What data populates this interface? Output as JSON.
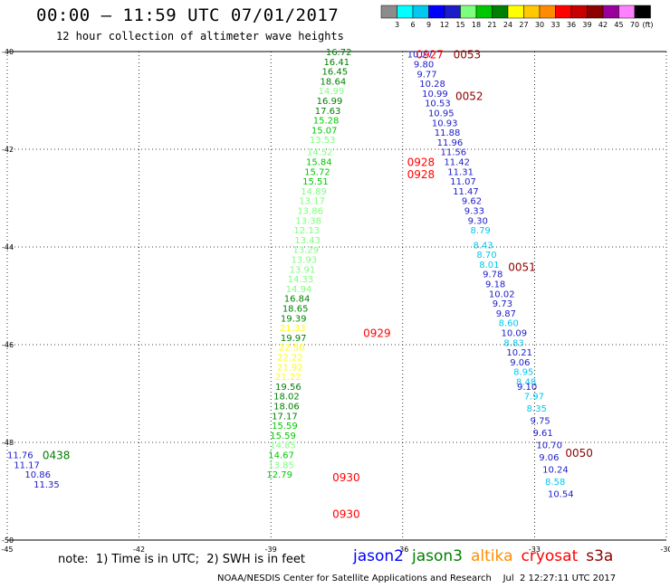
{
  "title": "00:00 – 11:59 UTC 07/01/2017",
  "subtitle": "12 hour collection of altimeter wave heights",
  "legend": {
    "unit": "(ft)",
    "labels": [
      "3",
      "6",
      "9",
      "12",
      "15",
      "18",
      "21",
      "24",
      "27",
      "30",
      "33",
      "36",
      "39",
      "42",
      "45",
      "70"
    ],
    "colors": [
      "#8c8c8c",
      "#00ffff",
      "#00c8f0",
      "#0000ff",
      "#1c1cc8",
      "#7dff7d",
      "#00c800",
      "#008000",
      "#ffff00",
      "#ffc800",
      "#ff8c00",
      "#ff0000",
      "#c80000",
      "#8c0000",
      "#9c009c",
      "#ff80ff",
      "#000000"
    ]
  },
  "chart_data": {
    "type": "map-annotations",
    "axes": {
      "lon_ticks": [
        "-45",
        "-42",
        "-39",
        "-36",
        "-33",
        "-30"
      ],
      "lat_ticks": [
        "-40",
        "-42",
        "-44",
        "-46",
        "-48",
        "-50"
      ],
      "lon_range": [
        -45,
        -30
      ],
      "lat_range": [
        -50,
        -40
      ]
    },
    "grid": "dotted",
    "tracks": [
      {
        "satellite": "jason3",
        "pass_labels": [
          {
            "text": "0927",
            "color": "#ff0000",
            "lat": -40.05,
            "lon": -35.7
          },
          {
            "text": "0928",
            "color": "#ff0000",
            "lat": -42.25,
            "lon": -35.9
          },
          {
            "text": "0928",
            "color": "#ff0000",
            "lat": -42.5,
            "lon": -35.9
          },
          {
            "text": "0929",
            "color": "#ff0000",
            "lat": -45.75,
            "lon": -36.9
          },
          {
            "text": "0930",
            "color": "#ff0000",
            "lat": -48.7,
            "lon": -37.6
          },
          {
            "text": "0930",
            "color": "#ff0000",
            "lat": -49.45,
            "lon": -37.6
          }
        ],
        "points": [
          {
            "v": "16.72",
            "lat": -40.0,
            "lon": -37.75,
            "color": "#008000"
          },
          {
            "v": "16.41",
            "lat": -40.2,
            "lon": -37.8,
            "color": "#008000"
          },
          {
            "v": "16.45",
            "lat": -40.4,
            "lon": -37.84,
            "color": "#008000"
          },
          {
            "v": "18.64",
            "lat": -40.6,
            "lon": -37.88,
            "color": "#008000"
          },
          {
            "v": "14.99",
            "lat": -40.8,
            "lon": -37.92,
            "color": "#7dff7d"
          },
          {
            "v": "16.99",
            "lat": -41.0,
            "lon": -37.96,
            "color": "#008000"
          },
          {
            "v": "17.63",
            "lat": -41.2,
            "lon": -38.0,
            "color": "#008000"
          },
          {
            "v": "15.28",
            "lat": -41.4,
            "lon": -38.04,
            "color": "#00c800"
          },
          {
            "v": "15.07",
            "lat": -41.6,
            "lon": -38.08,
            "color": "#00c800"
          },
          {
            "v": "13.53",
            "lat": -41.8,
            "lon": -38.12,
            "color": "#7dff7d"
          },
          {
            "v": "14.52",
            "lat": -42.05,
            "lon": -38.18,
            "color": "#7dff7d"
          },
          {
            "v": "15.84",
            "lat": -42.25,
            "lon": -38.2,
            "color": "#00c800"
          },
          {
            "v": "15.72",
            "lat": -42.45,
            "lon": -38.24,
            "color": "#00c800"
          },
          {
            "v": "15.51",
            "lat": -42.65,
            "lon": -38.28,
            "color": "#00c800"
          },
          {
            "v": "14.89",
            "lat": -42.85,
            "lon": -38.32,
            "color": "#7dff7d"
          },
          {
            "v": "13.17",
            "lat": -43.05,
            "lon": -38.36,
            "color": "#7dff7d"
          },
          {
            "v": "13.86",
            "lat": -43.25,
            "lon": -38.4,
            "color": "#7dff7d"
          },
          {
            "v": "13.38",
            "lat": -43.45,
            "lon": -38.44,
            "color": "#7dff7d"
          },
          {
            "v": "12.13",
            "lat": -43.65,
            "lon": -38.48,
            "color": "#7dff7d"
          },
          {
            "v": "13.43",
            "lat": -43.85,
            "lon": -38.46,
            "color": "#7dff7d"
          },
          {
            "v": "13.29",
            "lat": -44.05,
            "lon": -38.5,
            "color": "#7dff7d"
          },
          {
            "v": "13.93",
            "lat": -44.25,
            "lon": -38.54,
            "color": "#7dff7d"
          },
          {
            "v": "13.91",
            "lat": -44.45,
            "lon": -38.58,
            "color": "#7dff7d"
          },
          {
            "v": "14.33",
            "lat": -44.65,
            "lon": -38.62,
            "color": "#7dff7d"
          },
          {
            "v": "14.94",
            "lat": -44.85,
            "lon": -38.66,
            "color": "#7dff7d"
          },
          {
            "v": "16.84",
            "lat": -45.05,
            "lon": -38.7,
            "color": "#008000"
          },
          {
            "v": "18.65",
            "lat": -45.25,
            "lon": -38.74,
            "color": "#008000"
          },
          {
            "v": "19.39",
            "lat": -45.45,
            "lon": -38.78,
            "color": "#008000"
          },
          {
            "v": "21.33",
            "lat": -45.65,
            "lon": -38.8,
            "color": "#ffff00"
          },
          {
            "v": "19.97",
            "lat": -45.85,
            "lon": -38.78,
            "color": "#008000"
          },
          {
            "v": "22.50",
            "lat": -46.05,
            "lon": -38.82,
            "color": "#ffff00"
          },
          {
            "v": "22.22",
            "lat": -46.25,
            "lon": -38.86,
            "color": "#ffff00"
          },
          {
            "v": "21.92",
            "lat": -46.45,
            "lon": -38.86,
            "color": "#ffff00"
          },
          {
            "v": "21.22",
            "lat": -46.65,
            "lon": -38.9,
            "color": "#ffff00"
          },
          {
            "v": "19.56",
            "lat": -46.85,
            "lon": -38.9,
            "color": "#008000"
          },
          {
            "v": "18.02",
            "lat": -47.05,
            "lon": -38.94,
            "color": "#008000"
          },
          {
            "v": "18.06",
            "lat": -47.25,
            "lon": -38.94,
            "color": "#008000"
          },
          {
            "v": "17.17",
            "lat": -47.45,
            "lon": -38.98,
            "color": "#008000"
          },
          {
            "v": "15.59",
            "lat": -47.65,
            "lon": -38.98,
            "color": "#00c800"
          },
          {
            "v": "15.59",
            "lat": -47.85,
            "lon": -39.02,
            "color": "#00c800"
          },
          {
            "v": "14.85",
            "lat": -48.05,
            "lon": -39.02,
            "color": "#7dff7d"
          },
          {
            "v": "14.67",
            "lat": -48.25,
            "lon": -39.06,
            "color": "#00c800"
          },
          {
            "v": "13.85",
            "lat": -48.45,
            "lon": -39.06,
            "color": "#7dff7d"
          },
          {
            "v": "12.79",
            "lat": -48.65,
            "lon": -39.1,
            "color": "#00c800"
          }
        ]
      },
      {
        "satellite": "jason3-left",
        "pass_labels": [
          {
            "text": "0438",
            "color": "#008000",
            "lat": -48.25,
            "lon": -44.2
          }
        ],
        "points": [
          {
            "v": "11.76",
            "lat": -48.25,
            "lon": -45.0,
            "color": "#1c1cc8"
          },
          {
            "v": "11.17",
            "lat": -48.45,
            "lon": -44.85,
            "color": "#1c1cc8"
          },
          {
            "v": "10.86",
            "lat": -48.65,
            "lon": -44.6,
            "color": "#1c1cc8"
          },
          {
            "v": "11.35",
            "lat": -48.85,
            "lon": -44.4,
            "color": "#1c1cc8"
          }
        ]
      },
      {
        "satellite": "s3a",
        "pass_labels": [
          {
            "text": "0053",
            "color": "#8c0000",
            "lat": -40.05,
            "lon": -34.85
          },
          {
            "text": "0052",
            "color": "#8c0000",
            "lat": -40.9,
            "lon": -34.8
          },
          {
            "text": "0051",
            "color": "#8c0000",
            "lat": -44.4,
            "lon": -33.6
          },
          {
            "text": "0050",
            "color": "#8c0000",
            "lat": -48.2,
            "lon": -32.3
          }
        ],
        "points": [
          {
            "v": "10.27",
            "lat": -40.05,
            "lon": -35.9,
            "color": "#1c1cc8"
          },
          {
            "v": "9.80",
            "lat": -40.25,
            "lon": -35.75,
            "color": "#1c1cc8"
          },
          {
            "v": "9.77",
            "lat": -40.45,
            "lon": -35.68,
            "color": "#1c1cc8"
          },
          {
            "v": "10.28",
            "lat": -40.65,
            "lon": -35.62,
            "color": "#1c1cc8"
          },
          {
            "v": "10.99",
            "lat": -40.85,
            "lon": -35.56,
            "color": "#1c1cc8"
          },
          {
            "v": "10.53",
            "lat": -41.05,
            "lon": -35.5,
            "color": "#1c1cc8"
          },
          {
            "v": "10.95",
            "lat": -41.25,
            "lon": -35.42,
            "color": "#1c1cc8"
          },
          {
            "v": "10.93",
            "lat": -41.45,
            "lon": -35.34,
            "color": "#1c1cc8"
          },
          {
            "v": "11.88",
            "lat": -41.65,
            "lon": -35.28,
            "color": "#1c1cc8"
          },
          {
            "v": "11.96",
            "lat": -41.85,
            "lon": -35.22,
            "color": "#1c1cc8"
          },
          {
            "v": "11.56",
            "lat": -42.05,
            "lon": -35.14,
            "color": "#1c1cc8"
          },
          {
            "v": "11.42",
            "lat": -42.25,
            "lon": -35.06,
            "color": "#1c1cc8"
          },
          {
            "v": "11.31",
            "lat": -42.45,
            "lon": -34.98,
            "color": "#1c1cc8"
          },
          {
            "v": "11.07",
            "lat": -42.65,
            "lon": -34.92,
            "color": "#1c1cc8"
          },
          {
            "v": "11.47",
            "lat": -42.85,
            "lon": -34.86,
            "color": "#1c1cc8"
          },
          {
            "v": "9.62",
            "lat": -43.05,
            "lon": -34.66,
            "color": "#1c1cc8"
          },
          {
            "v": "9.33",
            "lat": -43.25,
            "lon": -34.6,
            "color": "#1c1cc8"
          },
          {
            "v": "9.30",
            "lat": -43.45,
            "lon": -34.52,
            "color": "#1c1cc8"
          },
          {
            "v": "8.79",
            "lat": -43.65,
            "lon": -34.46,
            "color": "#00c8f0"
          },
          {
            "v": "8.43",
            "lat": -43.95,
            "lon": -34.4,
            "color": "#00c8f0"
          },
          {
            "v": "8.70",
            "lat": -44.15,
            "lon": -34.32,
            "color": "#00c8f0"
          },
          {
            "v": "8.01",
            "lat": -44.35,
            "lon": -34.26,
            "color": "#00c8f0"
          },
          {
            "v": "9.78",
            "lat": -44.55,
            "lon": -34.18,
            "color": "#1c1cc8"
          },
          {
            "v": "9.18",
            "lat": -44.75,
            "lon": -34.12,
            "color": "#1c1cc8"
          },
          {
            "v": "10.02",
            "lat": -44.95,
            "lon": -34.04,
            "color": "#1c1cc8"
          },
          {
            "v": "9.73",
            "lat": -45.15,
            "lon": -33.96,
            "color": "#1c1cc8"
          },
          {
            "v": "9.87",
            "lat": -45.35,
            "lon": -33.88,
            "color": "#1c1cc8"
          },
          {
            "v": "8.60",
            "lat": -45.55,
            "lon": -33.82,
            "color": "#00c8f0"
          },
          {
            "v": "10.09",
            "lat": -45.75,
            "lon": -33.76,
            "color": "#1c1cc8"
          },
          {
            "v": "8.83",
            "lat": -45.95,
            "lon": -33.7,
            "color": "#00c8f0"
          },
          {
            "v": "10.21",
            "lat": -46.15,
            "lon": -33.64,
            "color": "#1c1cc8"
          },
          {
            "v": "9.06",
            "lat": -46.35,
            "lon": -33.56,
            "color": "#1c1cc8"
          },
          {
            "v": "8.95",
            "lat": -46.55,
            "lon": -33.48,
            "color": "#00c8f0"
          },
          {
            "v": "8.48",
            "lat": -46.75,
            "lon": -33.42,
            "color": "#00c8f0"
          },
          {
            "v": "9.10",
            "lat": -46.85,
            "lon": -33.4,
            "color": "#1c1cc8"
          },
          {
            "v": "7.97",
            "lat": -47.05,
            "lon": -33.24,
            "color": "#00c8f0"
          },
          {
            "v": "8.35",
            "lat": -47.3,
            "lon": -33.18,
            "color": "#00c8f0"
          },
          {
            "v": "9.75",
            "lat": -47.55,
            "lon": -33.1,
            "color": "#1c1cc8"
          },
          {
            "v": "9.61",
            "lat": -47.8,
            "lon": -33.04,
            "color": "#1c1cc8"
          },
          {
            "v": "10.70",
            "lat": -48.05,
            "lon": -32.96,
            "color": "#1c1cc8"
          },
          {
            "v": "9.06",
            "lat": -48.3,
            "lon": -32.9,
            "color": "#1c1cc8"
          },
          {
            "v": "10.24",
            "lat": -48.55,
            "lon": -32.82,
            "color": "#1c1cc8"
          },
          {
            "v": "8.58",
            "lat": -48.8,
            "lon": -32.76,
            "color": "#00c8f0"
          },
          {
            "v": "10.54",
            "lat": -49.05,
            "lon": -32.7,
            "color": "#1c1cc8"
          }
        ]
      }
    ]
  },
  "note": "note:  1) Time is in UTC;  2) SWH is in feet",
  "satellites": [
    {
      "name": "jason2",
      "color": "#0000ff"
    },
    {
      "name": "jason3",
      "color": "#008000"
    },
    {
      "name": "altika",
      "color": "#ff8c00"
    },
    {
      "name": "cryosat",
      "color": "#ff0000"
    },
    {
      "name": "s3a",
      "color": "#8c0000"
    }
  ],
  "footer": "NOAA/NESDIS Center for Satellite Applications and Research    Jul  2 12:27:11 UTC 2017"
}
